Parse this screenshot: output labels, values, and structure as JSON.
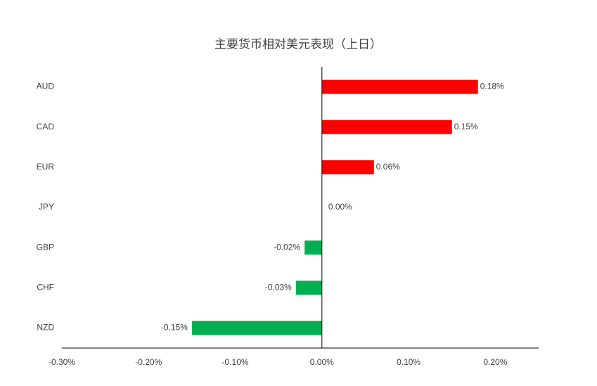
{
  "chart_data": {
    "type": "hbar",
    "title": "主要货币相对美元表现（上日）",
    "categories": [
      "AUD",
      "CAD",
      "EUR",
      "JPY",
      "GBP",
      "CHF",
      "NZD"
    ],
    "values": [
      0.18,
      0.15,
      0.06,
      0,
      -0.02,
      -0.03,
      -0.15
    ],
    "value_labels": [
      "0.18%",
      "0.15%",
      "0.06%",
      "0.00%",
      "-0.02%",
      "-0.03%",
      "-0.15%"
    ],
    "colors": [
      "#ff0000",
      "#ff0000",
      "#ff0000",
      "#ff0000",
      "#00b050",
      "#00b050",
      "#00b050"
    ],
    "xlim": [
      -0.3,
      0.25
    ],
    "xticks": [
      {
        "value": -0.3,
        "label": "-0.30%"
      },
      {
        "value": -0.2,
        "label": "-0.20%"
      },
      {
        "value": -0.1,
        "label": "-0.10%"
      },
      {
        "value": 0,
        "label": "0.00%"
      },
      {
        "value": 0.1,
        "label": "0.10%"
      },
      {
        "value": 0.2,
        "label": "0.20%"
      }
    ]
  }
}
